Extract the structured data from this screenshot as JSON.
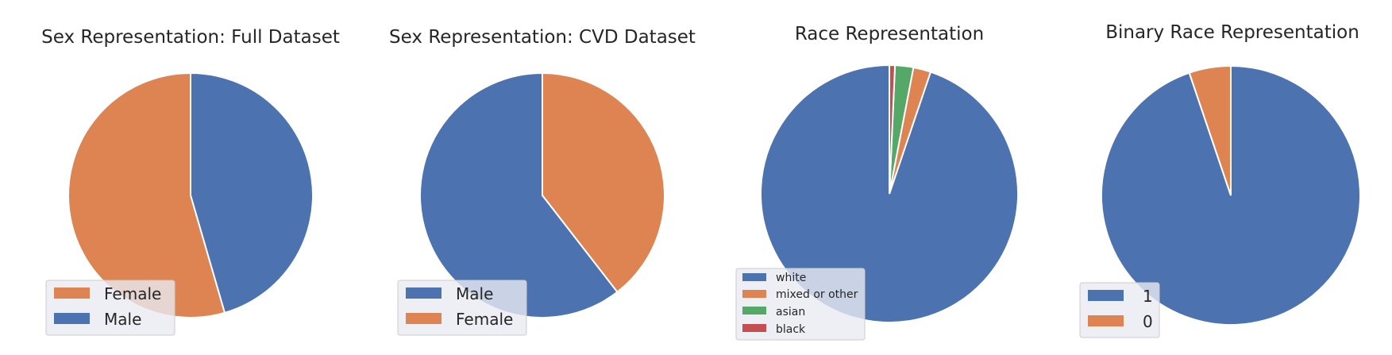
{
  "colors": {
    "blue": "#4c72b0",
    "orange": "#dd8452",
    "green": "#55a868",
    "red": "#c44e52"
  },
  "chart_data": [
    {
      "type": "pie",
      "title": "Sex Representation: Full Dataset",
      "slices": [
        {
          "label": "Male",
          "value": 45.5,
          "color": "#4c72b0"
        },
        {
          "label": "Female",
          "value": 54.5,
          "color": "#dd8452"
        }
      ],
      "legend": [
        "Female",
        "Male"
      ],
      "legend_position": "lower-left",
      "start": "top, clockwise"
    },
    {
      "type": "pie",
      "title": "Sex Representation: CVD Dataset",
      "slices": [
        {
          "label": "Female",
          "value": 39.5,
          "color": "#dd8452"
        },
        {
          "label": "Male",
          "value": 60.5,
          "color": "#4c72b0"
        }
      ],
      "legend": [
        "Male",
        "Female"
      ],
      "legend_position": "lower-left",
      "start": "top, clockwise"
    },
    {
      "type": "pie",
      "title": "Race Representation",
      "slices": [
        {
          "label": "white",
          "value": 94.8,
          "color": "#4c72b0"
        },
        {
          "label": "mixed or other",
          "value": 2.2,
          "color": "#dd8452"
        },
        {
          "label": "asian",
          "value": 2.3,
          "color": "#55a868"
        },
        {
          "label": "black",
          "value": 0.7,
          "color": "#c44e52"
        }
      ],
      "legend": [
        "white",
        "mixed or other",
        "asian",
        "black"
      ],
      "legend_position": "lower-left",
      "start": "top, counter-clockwise"
    },
    {
      "type": "pie",
      "title": "Binary Race Representation",
      "slices": [
        {
          "label": "1",
          "value": 94.8,
          "color": "#4c72b0"
        },
        {
          "label": "0",
          "value": 5.2,
          "color": "#dd8452"
        }
      ],
      "legend": [
        "1",
        "0"
      ],
      "legend_position": "lower-left",
      "start": "top, clockwise"
    }
  ]
}
